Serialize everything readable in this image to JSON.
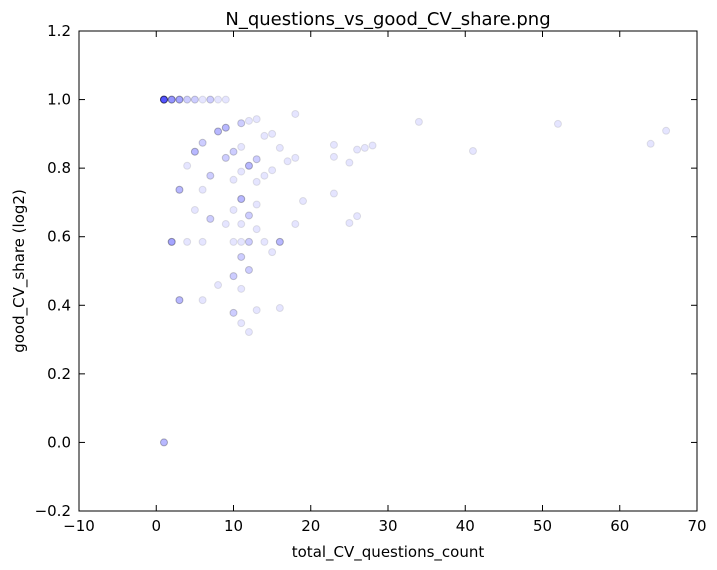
{
  "chart_data": {
    "type": "scatter",
    "title": "N_questions_vs_good_CV_share.png",
    "xlabel": "total_CV_questions_count",
    "ylabel": "good_CV_share (log2)",
    "xlim": [
      -10,
      70
    ],
    "ylim": [
      -0.2,
      1.2
    ],
    "xticks": [
      "−10",
      "0",
      "10",
      "20",
      "30",
      "40",
      "50",
      "60",
      "70"
    ],
    "yticks": [
      "−0.2",
      "0.0",
      "0.2",
      "0.4",
      "0.6",
      "0.8",
      "1.0",
      "1.2"
    ],
    "grid": false,
    "legend": "none",
    "marker_color": "#0000ff",
    "marker_alpha": 0.1,
    "points": [
      [
        1,
        1.0
      ],
      [
        1,
        1.0
      ],
      [
        1,
        1.0
      ],
      [
        1,
        1.0
      ],
      [
        1,
        1.0
      ],
      [
        1,
        1.0
      ],
      [
        1,
        1.0
      ],
      [
        1,
        1.0
      ],
      [
        1,
        1.0
      ],
      [
        1,
        1.0
      ],
      [
        2,
        1.0
      ],
      [
        2,
        1.0
      ],
      [
        2,
        1.0
      ],
      [
        2,
        1.0
      ],
      [
        2,
        1.0
      ],
      [
        3,
        1.0
      ],
      [
        3,
        1.0
      ],
      [
        3,
        1.0
      ],
      [
        3,
        1.0
      ],
      [
        4,
        1.0
      ],
      [
        4,
        1.0
      ],
      [
        5,
        1.0
      ],
      [
        5,
        1.0
      ],
      [
        6,
        1.0
      ],
      [
        7,
        1.0
      ],
      [
        7,
        1.0
      ],
      [
        8,
        1.0
      ],
      [
        9,
        1.0
      ],
      [
        1,
        0.0
      ],
      [
        1,
        0.0
      ],
      [
        1,
        0.0
      ],
      [
        2,
        0.585
      ],
      [
        2,
        0.585
      ],
      [
        2,
        0.585
      ],
      [
        2,
        0.585
      ],
      [
        3,
        0.737
      ],
      [
        3,
        0.737
      ],
      [
        3,
        0.737
      ],
      [
        3,
        0.415
      ],
      [
        3,
        0.415
      ],
      [
        3,
        0.415
      ],
      [
        4,
        0.807
      ],
      [
        4,
        0.585
      ],
      [
        5,
        0.848
      ],
      [
        5,
        0.848
      ],
      [
        5,
        0.848
      ],
      [
        5,
        0.678
      ],
      [
        6,
        0.874
      ],
      [
        6,
        0.874
      ],
      [
        6,
        0.737
      ],
      [
        6,
        0.585
      ],
      [
        6,
        0.415
      ],
      [
        7,
        0.778
      ],
      [
        7,
        0.778
      ],
      [
        7,
        0.652
      ],
      [
        7,
        0.652
      ],
      [
        8,
        0.907
      ],
      [
        8,
        0.907
      ],
      [
        8,
        0.907
      ],
      [
        8,
        0.459
      ],
      [
        9,
        0.918
      ],
      [
        9,
        0.918
      ],
      [
        9,
        0.918
      ],
      [
        9,
        0.83
      ],
      [
        9,
        0.83
      ],
      [
        9,
        0.637
      ],
      [
        10,
        0.848
      ],
      [
        10,
        0.848
      ],
      [
        10,
        0.766
      ],
      [
        10,
        0.678
      ],
      [
        10,
        0.585
      ],
      [
        10,
        0.485
      ],
      [
        10,
        0.485
      ],
      [
        10,
        0.378
      ],
      [
        10,
        0.378
      ],
      [
        11,
        0.931
      ],
      [
        11,
        0.931
      ],
      [
        11,
        0.862
      ],
      [
        11,
        0.79
      ],
      [
        11,
        0.71
      ],
      [
        11,
        0.71
      ],
      [
        11,
        0.71
      ],
      [
        11,
        0.637
      ],
      [
        11,
        0.585
      ],
      [
        11,
        0.541
      ],
      [
        11,
        0.541
      ],
      [
        11,
        0.448
      ],
      [
        11,
        0.348
      ],
      [
        12,
        0.938
      ],
      [
        12,
        0.807
      ],
      [
        12,
        0.807
      ],
      [
        12,
        0.807
      ],
      [
        12,
        0.662
      ],
      [
        12,
        0.662
      ],
      [
        12,
        0.585
      ],
      [
        12,
        0.585
      ],
      [
        12,
        0.503
      ],
      [
        12,
        0.503
      ],
      [
        12,
        0.322
      ],
      [
        13,
        0.943
      ],
      [
        13,
        0.826
      ],
      [
        13,
        0.826
      ],
      [
        13,
        0.76
      ],
      [
        13,
        0.694
      ],
      [
        13,
        0.622
      ],
      [
        13,
        0.386
      ],
      [
        14,
        0.894
      ],
      [
        14,
        0.778
      ],
      [
        14,
        0.585
      ],
      [
        15,
        0.9
      ],
      [
        15,
        0.794
      ],
      [
        15,
        0.555
      ],
      [
        16,
        0.859
      ],
      [
        16,
        0.585
      ],
      [
        16,
        0.585
      ],
      [
        16,
        0.585
      ],
      [
        16,
        0.392
      ],
      [
        17,
        0.82
      ],
      [
        18,
        0.958
      ],
      [
        18,
        0.83
      ],
      [
        18,
        0.637
      ],
      [
        19,
        0.704
      ],
      [
        23,
        0.868
      ],
      [
        23,
        0.833
      ],
      [
        23,
        0.726
      ],
      [
        25,
        0.816
      ],
      [
        25,
        0.64
      ],
      [
        26,
        0.854
      ],
      [
        26,
        0.66
      ],
      [
        27,
        0.859
      ],
      [
        28,
        0.866
      ],
      [
        34,
        0.935
      ],
      [
        41,
        0.85
      ],
      [
        52,
        0.929
      ],
      [
        64,
        0.871
      ],
      [
        66,
        0.909
      ]
    ]
  }
}
